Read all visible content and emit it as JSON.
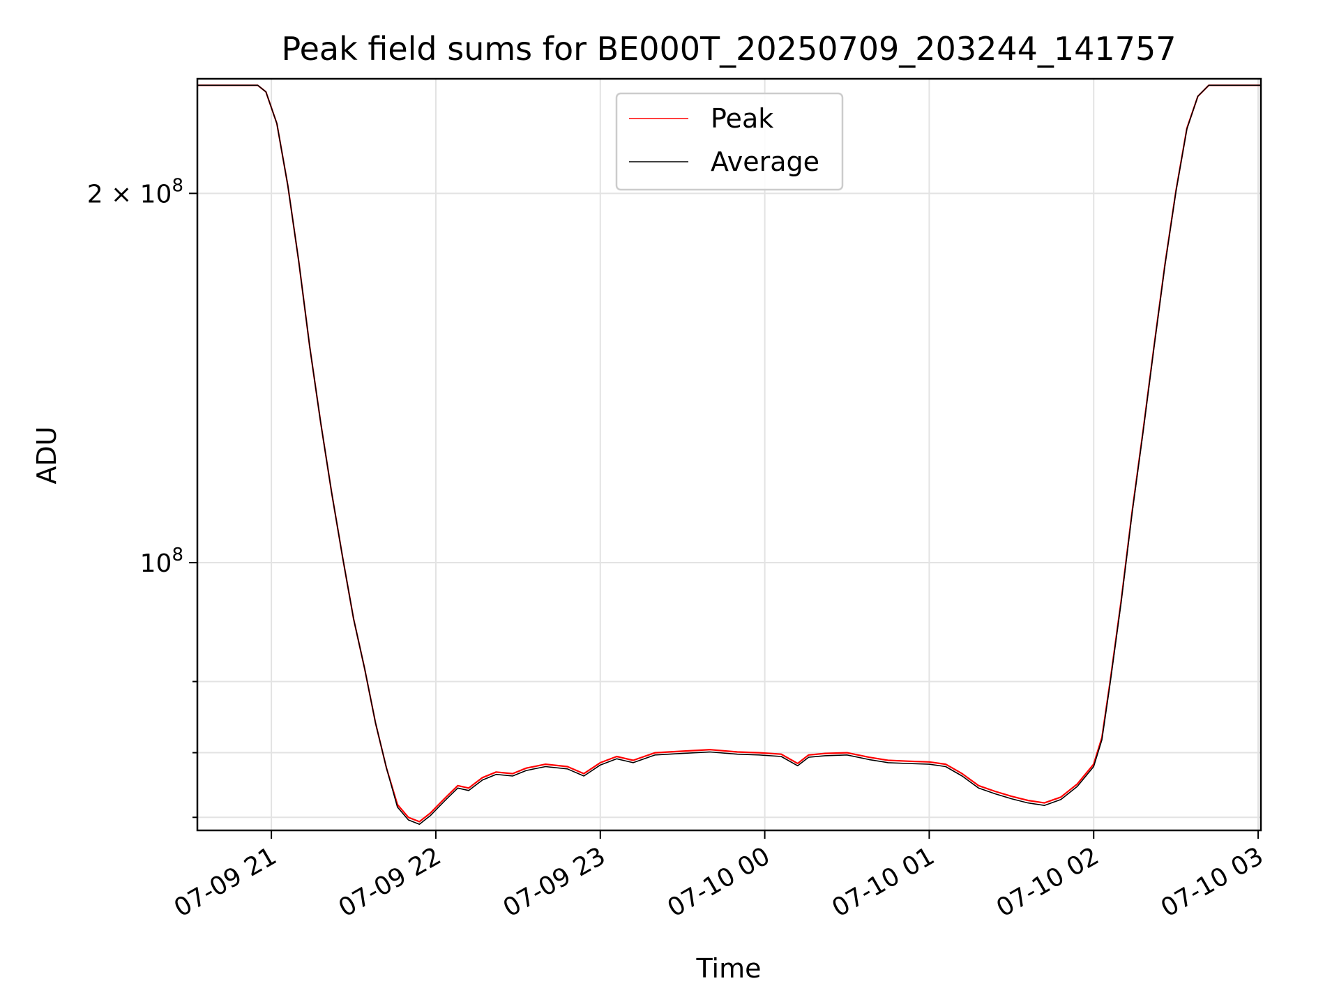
{
  "chart_data": {
    "type": "line",
    "title": "Peak field sums for BE000T_20250709_203244_141757",
    "xlabel": "Time",
    "ylabel": "ADU",
    "yscale": "log",
    "grid": true,
    "legend_position": "upper-center",
    "x_tick_labels": [
      "07-09 21",
      "07-09 22",
      "07-09 23",
      "07-10 00",
      "07-10 01",
      "07-10 02",
      "07-10 03"
    ],
    "x_ticks": [
      "2025-07-09 21:00",
      "2025-07-09 22:00",
      "2025-07-09 23:00",
      "2025-07-10 00:00",
      "2025-07-10 01:00",
      "2025-07-10 02:00",
      "2025-07-10 03:00"
    ],
    "xlim": [
      "2025-07-09 20:33",
      "2025-07-10 03:01"
    ],
    "ylim": [
      60500000,
      248000000
    ],
    "y_major_ticks": [
      {
        "value": 100000000,
        "label_base": "10",
        "label_exp": "8"
      },
      {
        "value": 200000000,
        "label_base": "2 × 10",
        "label_exp": "8"
      }
    ],
    "y_minor_ticks": [
      62000000,
      70000000,
      80000000
    ],
    "series": [
      {
        "name": "Peak",
        "color": "#ff0000",
        "x": [
          "2025-07-09 20:33",
          "2025-07-09 20:55",
          "2025-07-09 20:58",
          "2025-07-09 21:02",
          "2025-07-09 21:06",
          "2025-07-09 21:10",
          "2025-07-09 21:14",
          "2025-07-09 21:18",
          "2025-07-09 21:22",
          "2025-07-09 21:26",
          "2025-07-09 21:30",
          "2025-07-09 21:34",
          "2025-07-09 21:38",
          "2025-07-09 21:42",
          "2025-07-09 21:46",
          "2025-07-09 21:50",
          "2025-07-09 21:54",
          "2025-07-09 21:58",
          "2025-07-09 22:01",
          "2025-07-09 22:04",
          "2025-07-09 22:08",
          "2025-07-09 22:12",
          "2025-07-09 22:17",
          "2025-07-09 22:22",
          "2025-07-09 22:28",
          "2025-07-09 22:33",
          "2025-07-09 22:40",
          "2025-07-09 22:48",
          "2025-07-09 22:54",
          "2025-07-09 23:00",
          "2025-07-09 23:06",
          "2025-07-09 23:12",
          "2025-07-09 23:20",
          "2025-07-09 23:30",
          "2025-07-09 23:40",
          "2025-07-09 23:50",
          "2025-07-09 23:58",
          "2025-07-10 00:06",
          "2025-07-10 00:12",
          "2025-07-10 00:16",
          "2025-07-10 00:22",
          "2025-07-10 00:30",
          "2025-07-10 00:38",
          "2025-07-10 00:45",
          "2025-07-10 00:52",
          "2025-07-10 01:00",
          "2025-07-10 01:06",
          "2025-07-10 01:12",
          "2025-07-10 01:18",
          "2025-07-10 01:24",
          "2025-07-10 01:30",
          "2025-07-10 01:36",
          "2025-07-10 01:42",
          "2025-07-10 01:48",
          "2025-07-10 01:54",
          "2025-07-10 02:00",
          "2025-07-10 02:03",
          "2025-07-10 02:06",
          "2025-07-10 02:10",
          "2025-07-10 02:14",
          "2025-07-10 02:18",
          "2025-07-10 02:22",
          "2025-07-10 02:26",
          "2025-07-10 02:30",
          "2025-07-10 02:34",
          "2025-07-10 02:38",
          "2025-07-10 02:42",
          "2025-07-10 02:47",
          "2025-07-10 03:01"
        ],
        "y": [
          245000000,
          245000000,
          242000000,
          228000000,
          203000000,
          176000000,
          150000000,
          130000000,
          114000000,
          101000000,
          90000000,
          82000000,
          74000000,
          68000000,
          63500000,
          62000000,
          61500000,
          62500000,
          63500000,
          64500000,
          65800000,
          65500000,
          66800000,
          67500000,
          67300000,
          68000000,
          68500000,
          68200000,
          67300000,
          68700000,
          69500000,
          69000000,
          70000000,
          70200000,
          70400000,
          70100000,
          70000000,
          69800000,
          68600000,
          69700000,
          69900000,
          70000000,
          69400000,
          69000000,
          68900000,
          68800000,
          68500000,
          67300000,
          65800000,
          65100000,
          64500000,
          64000000,
          63700000,
          64400000,
          66000000,
          68500000,
          72000000,
          80000000,
          93000000,
          110000000,
          128000000,
          150000000,
          175000000,
          201000000,
          226000000,
          240000000,
          245000000,
          245000000,
          245000000
        ]
      },
      {
        "name": "Average",
        "color": "#000000",
        "x": [
          "2025-07-09 20:33",
          "2025-07-09 20:55",
          "2025-07-09 20:58",
          "2025-07-09 21:02",
          "2025-07-09 21:06",
          "2025-07-09 21:10",
          "2025-07-09 21:14",
          "2025-07-09 21:18",
          "2025-07-09 21:22",
          "2025-07-09 21:26",
          "2025-07-09 21:30",
          "2025-07-09 21:34",
          "2025-07-09 21:38",
          "2025-07-09 21:42",
          "2025-07-09 21:46",
          "2025-07-09 21:50",
          "2025-07-09 21:54",
          "2025-07-09 21:58",
          "2025-07-09 22:01",
          "2025-07-09 22:04",
          "2025-07-09 22:08",
          "2025-07-09 22:12",
          "2025-07-09 22:17",
          "2025-07-09 22:22",
          "2025-07-09 22:28",
          "2025-07-09 22:33",
          "2025-07-09 22:40",
          "2025-07-09 22:48",
          "2025-07-09 22:54",
          "2025-07-09 23:00",
          "2025-07-09 23:06",
          "2025-07-09 23:12",
          "2025-07-09 23:20",
          "2025-07-09 23:30",
          "2025-07-09 23:40",
          "2025-07-09 23:50",
          "2025-07-09 23:58",
          "2025-07-10 00:06",
          "2025-07-10 00:12",
          "2025-07-10 00:16",
          "2025-07-10 00:22",
          "2025-07-10 00:30",
          "2025-07-10 00:38",
          "2025-07-10 00:45",
          "2025-07-10 00:52",
          "2025-07-10 01:00",
          "2025-07-10 01:06",
          "2025-07-10 01:12",
          "2025-07-10 01:18",
          "2025-07-10 01:24",
          "2025-07-10 01:30",
          "2025-07-10 01:36",
          "2025-07-10 01:42",
          "2025-07-10 01:48",
          "2025-07-10 01:54",
          "2025-07-10 02:00",
          "2025-07-10 02:03",
          "2025-07-10 02:06",
          "2025-07-10 02:10",
          "2025-07-10 02:14",
          "2025-07-10 02:18",
          "2025-07-10 02:22",
          "2025-07-10 02:26",
          "2025-07-10 02:30",
          "2025-07-10 02:34",
          "2025-07-10 02:38",
          "2025-07-10 02:42",
          "2025-07-10 02:47",
          "2025-07-10 03:01"
        ],
        "y": [
          245000000,
          245000000,
          242000000,
          228000000,
          203000000,
          176000000,
          150000000,
          130000000,
          114000000,
          101000000,
          90000000,
          82000000,
          74000000,
          68000000,
          63200000,
          61700000,
          61200000,
          62200000,
          63200000,
          64200000,
          65500000,
          65200000,
          66500000,
          67200000,
          67000000,
          67700000,
          68200000,
          67900000,
          67000000,
          68400000,
          69200000,
          68700000,
          69700000,
          69900000,
          70100000,
          69800000,
          69700000,
          69500000,
          68300000,
          69400000,
          69600000,
          69700000,
          69100000,
          68700000,
          68600000,
          68500000,
          68200000,
          67000000,
          65500000,
          64800000,
          64200000,
          63700000,
          63400000,
          64100000,
          65700000,
          68200000,
          71700000,
          79700000,
          92700000,
          109700000,
          127700000,
          149700000,
          174700000,
          200700000,
          225700000,
          240000000,
          245000000,
          245000000,
          245000000
        ]
      }
    ]
  }
}
